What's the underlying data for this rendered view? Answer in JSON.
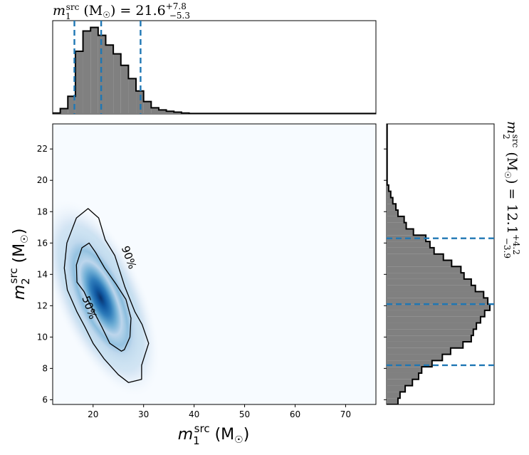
{
  "chart_data": [
    {
      "type": "heatmap",
      "panel": "joint",
      "xlabel": "m_1^src (M_⊙)",
      "ylabel": "m_2^src (M_⊙)",
      "xlim": [
        12,
        76
      ],
      "ylim": [
        5.7,
        23.6
      ],
      "x_ticks": [
        20,
        30,
        40,
        50,
        60,
        70
      ],
      "y_ticks": [
        6,
        8,
        10,
        12,
        14,
        16,
        18,
        20,
        22
      ],
      "colormap": "Blues",
      "density_peak": {
        "x": 21.5,
        "y": 12.5
      },
      "contours": [
        {
          "label": "90%",
          "x": [
            19.0,
            21.1,
            22.4,
            24.3,
            26.3,
            28.3,
            29.7,
            31.0,
            30.3,
            29.6,
            29.6,
            27.0,
            25.0,
            22.2,
            20.0,
            18.3,
            16.8,
            14.9,
            14.3,
            14.8,
            16.7,
            19.0
          ],
          "y": [
            18.2,
            17.6,
            16.2,
            15.2,
            13.2,
            11.6,
            10.8,
            9.6,
            8.9,
            8.2,
            7.3,
            7.1,
            7.6,
            8.6,
            9.6,
            10.7,
            11.6,
            13.0,
            14.4,
            16.0,
            17.6,
            18.2
          ]
        },
        {
          "label": "50%",
          "x": [
            19.2,
            20.5,
            22.3,
            24.5,
            26.5,
            27.5,
            27.3,
            26.2,
            25.6,
            23.3,
            21.8,
            20.5,
            19.2,
            18.2,
            16.8,
            16.7,
            17.8,
            19.2
          ],
          "y": [
            16.0,
            15.4,
            14.4,
            13.4,
            12.4,
            11.2,
            10.0,
            9.2,
            9.1,
            9.6,
            10.6,
            11.4,
            12.2,
            12.9,
            13.5,
            14.6,
            15.7,
            16.0
          ]
        }
      ]
    },
    {
      "type": "bar",
      "panel": "m1-marginal",
      "title": "m_1^src (M_⊙) = 21.6 +7.8 −5.3",
      "median": 21.6,
      "lower": 16.3,
      "upper": 29.4,
      "x_range": [
        12,
        76
      ],
      "bin_edges": [
        12,
        13.5,
        15,
        16.5,
        18,
        19.5,
        21,
        22.5,
        24,
        25.5,
        27,
        28.5,
        30,
        31.5,
        33,
        34.5,
        36,
        37.5,
        39,
        76
      ],
      "heights": [
        0.01,
        0.06,
        0.2,
        0.71,
        0.94,
        0.98,
        0.89,
        0.78,
        0.68,
        0.55,
        0.4,
        0.26,
        0.14,
        0.07,
        0.045,
        0.03,
        0.02,
        0.01,
        0.005
      ]
    },
    {
      "type": "bar",
      "panel": "m2-marginal",
      "title": "m_2^src (M_⊙) = 12.1 +4.2 −3.9",
      "median": 12.1,
      "lower": 8.2,
      "upper": 16.3,
      "y_range": [
        5.7,
        23.6
      ],
      "bin_edges": [
        5.7,
        6.1,
        6.5,
        6.9,
        7.3,
        7.7,
        8.1,
        8.5,
        8.9,
        9.3,
        9.7,
        10.1,
        10.5,
        10.9,
        11.3,
        11.7,
        12.1,
        12.5,
        12.9,
        13.3,
        13.7,
        14.1,
        14.5,
        14.9,
        15.3,
        15.7,
        16.1,
        16.5,
        16.9,
        17.3,
        17.7,
        18.1,
        18.5,
        18.9,
        19.3,
        19.7,
        23.6
      ],
      "widths": [
        0.11,
        0.13,
        0.18,
        0.25,
        0.31,
        0.34,
        0.44,
        0.54,
        0.62,
        0.74,
        0.82,
        0.84,
        0.87,
        0.91,
        0.95,
        1.0,
        0.98,
        0.94,
        0.86,
        0.82,
        0.75,
        0.72,
        0.63,
        0.55,
        0.46,
        0.42,
        0.38,
        0.26,
        0.19,
        0.17,
        0.11,
        0.09,
        0.06,
        0.04,
        0.02,
        0.005
      ]
    }
  ]
}
